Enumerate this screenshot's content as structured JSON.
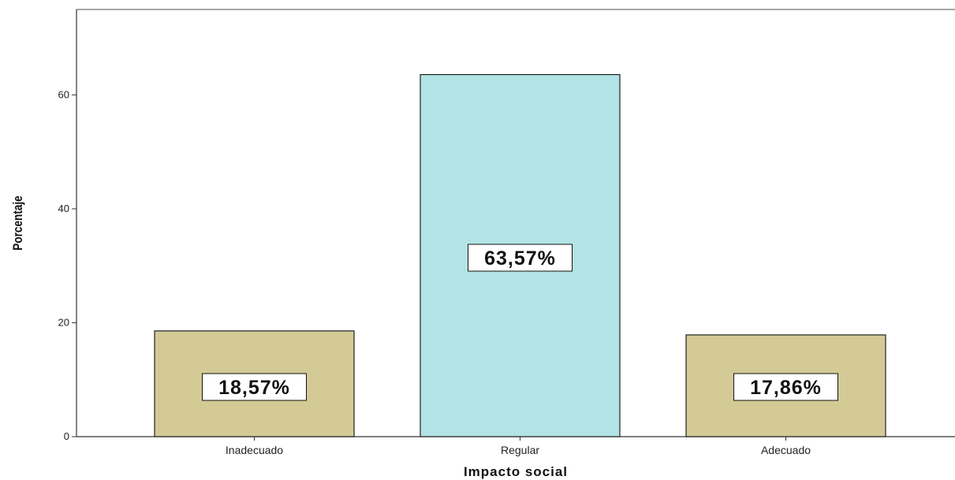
{
  "chart_data": {
    "type": "bar",
    "categories": [
      "Inadecuado",
      "Regular",
      "Adecuado"
    ],
    "values": [
      18.57,
      63.57,
      17.86
    ],
    "data_labels": [
      "18,57%",
      "63,57%",
      "17,86%"
    ],
    "bar_colors": [
      "#d3ca96",
      "#b2e3e5",
      "#d3ca96"
    ],
    "xlabel": "Impacto social",
    "ylabel": "Porcentaje",
    "ylim": [
      0,
      75
    ],
    "yticks": [
      0,
      20,
      40,
      60
    ],
    "ytick_labels": [
      "0",
      "20",
      "40",
      "60"
    ],
    "grid": false,
    "legend": "none"
  }
}
